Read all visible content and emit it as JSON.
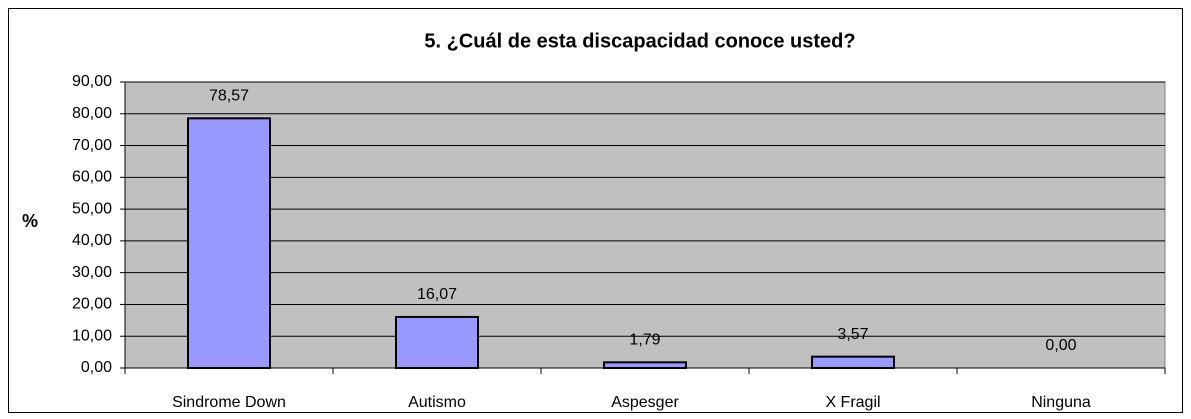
{
  "chart_data": {
    "type": "bar",
    "title": "5. ¿Cuál de esta discapacidad conoce usted?",
    "ylabel": "%",
    "categories": [
      "Sindrome Down",
      "Autismo",
      "Aspesger",
      "X Fragil",
      "Ninguna"
    ],
    "values": [
      78.57,
      16.07,
      1.79,
      3.57,
      0
    ],
    "value_labels": [
      "78,57",
      "16,07",
      "1,79",
      "3,57",
      "0,00"
    ],
    "color": "#9999ff",
    "ylim": [
      0,
      90
    ],
    "yticks": [
      {
        "value": 0,
        "label": "0,00"
      },
      {
        "value": 10,
        "label": "10,00"
      },
      {
        "value": 20,
        "label": "20,00"
      },
      {
        "value": 30,
        "label": "30,00"
      },
      {
        "value": 40,
        "label": "40,00"
      },
      {
        "value": 50,
        "label": "50,00"
      },
      {
        "value": 60,
        "label": "60,00"
      },
      {
        "value": 70,
        "label": "70,00"
      },
      {
        "value": 80,
        "label": "80,00"
      },
      {
        "value": 90,
        "label": "90,00"
      }
    ],
    "grid": true
  }
}
